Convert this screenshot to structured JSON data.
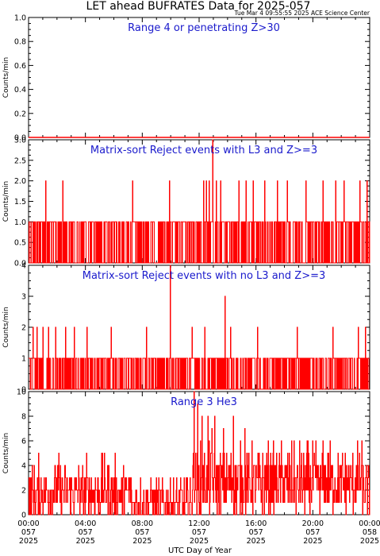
{
  "title": "LET ahead BUFRATES Data for 2025-057",
  "timestamp": "Tue Mar  4 09:55:55 2025 ACE Science Center",
  "colors": {
    "series": "#ff0000",
    "panel_title": "#1a1acc",
    "axis": "#000000"
  },
  "xlabel": "UTC Day of Year",
  "x_ticks": [
    [
      "00:00",
      "057",
      "2025"
    ],
    [
      "04:00",
      "057",
      "2025"
    ],
    [
      "08:00",
      "057",
      "2025"
    ],
    [
      "12:00",
      "057",
      "2025"
    ],
    [
      "16:00",
      "057",
      "2025"
    ],
    [
      "20:00",
      "057",
      "2025"
    ],
    [
      "00:00",
      "058",
      "2025"
    ]
  ],
  "chart_data": [
    {
      "type": "line",
      "title": "Range 4 or   penetrating Z>30",
      "ylabel": "Counts/min",
      "xlabel": "UTC Day of Year",
      "xlim": [
        0,
        24
      ],
      "ylim": [
        0,
        1.0
      ],
      "yticks": [
        "0.0",
        "0.2",
        "0.4",
        "0.6",
        "0.8",
        "1.0"
      ],
      "yticks_v": [
        0,
        0.2,
        0.4,
        0.6,
        0.8,
        1.0
      ],
      "pattern": "flat",
      "levels": [
        0
      ],
      "base": 0,
      "spikes": []
    },
    {
      "type": "line",
      "title": "Matrix-sort Reject events with L3 and Z>=3",
      "ylabel": "Counts/min",
      "xlabel": "UTC Day of Year",
      "xlim": [
        0,
        24
      ],
      "ylim": [
        0,
        3.0
      ],
      "yticks": [
        "0.0",
        "0.5",
        "1.0",
        "1.5",
        "2.0",
        "2.5",
        "3.0"
      ],
      "yticks_v": [
        0,
        0.5,
        1.0,
        1.5,
        2.0,
        2.5,
        3.0
      ],
      "pattern": "binary",
      "levels": [
        0,
        1
      ],
      "base": 1,
      "spikes": [
        {
          "t": 1.2,
          "v": 2
        },
        {
          "t": 2.4,
          "v": 2
        },
        {
          "t": 7.3,
          "v": 2
        },
        {
          "t": 9.9,
          "v": 2
        },
        {
          "t": 12.3,
          "v": 2
        },
        {
          "t": 12.5,
          "v": 2
        },
        {
          "t": 12.7,
          "v": 2
        },
        {
          "t": 12.95,
          "v": 3
        },
        {
          "t": 13.2,
          "v": 2
        },
        {
          "t": 13.5,
          "v": 2
        },
        {
          "t": 14.8,
          "v": 2
        },
        {
          "t": 15.3,
          "v": 2
        },
        {
          "t": 15.8,
          "v": 2
        },
        {
          "t": 16.6,
          "v": 2
        },
        {
          "t": 17.5,
          "v": 2
        },
        {
          "t": 18.2,
          "v": 2
        },
        {
          "t": 19.5,
          "v": 2
        },
        {
          "t": 20.7,
          "v": 2
        },
        {
          "t": 21.6,
          "v": 2
        },
        {
          "t": 22.2,
          "v": 2
        },
        {
          "t": 23.3,
          "v": 2
        },
        {
          "t": 23.8,
          "v": 2
        }
      ]
    },
    {
      "type": "line",
      "title": "Matrix-sort Reject events with no L3 and Z>=3",
      "ylabel": "Counts/min",
      "xlabel": "UTC Day of Year",
      "xlim": [
        0,
        24
      ],
      "ylim": [
        0,
        4
      ],
      "yticks": [
        "0",
        "1",
        "2",
        "3",
        "4"
      ],
      "yticks_v": [
        0,
        1,
        2,
        3,
        4
      ],
      "pattern": "binary",
      "levels": [
        0,
        1
      ],
      "base": 1,
      "spikes": [
        {
          "t": 0.3,
          "v": 2
        },
        {
          "t": 0.6,
          "v": 2
        },
        {
          "t": 1.0,
          "v": 2
        },
        {
          "t": 1.4,
          "v": 2
        },
        {
          "t": 1.9,
          "v": 2
        },
        {
          "t": 2.6,
          "v": 2
        },
        {
          "t": 3.2,
          "v": 2
        },
        {
          "t": 4.1,
          "v": 2
        },
        {
          "t": 5.8,
          "v": 2
        },
        {
          "t": 8.3,
          "v": 2
        },
        {
          "t": 9.95,
          "v": 4
        },
        {
          "t": 11.5,
          "v": 2
        },
        {
          "t": 12.4,
          "v": 2
        },
        {
          "t": 13.8,
          "v": 3
        },
        {
          "t": 14.2,
          "v": 2
        },
        {
          "t": 16.1,
          "v": 2
        },
        {
          "t": 18.9,
          "v": 2
        },
        {
          "t": 21.4,
          "v": 2
        },
        {
          "t": 23.2,
          "v": 2
        },
        {
          "t": 23.7,
          "v": 2
        }
      ]
    },
    {
      "type": "line",
      "title": "Range 3 He3",
      "ylabel": "Counts/min",
      "xlabel": "UTC Day of Year",
      "xlim": [
        0,
        24
      ],
      "ylim": [
        0,
        10
      ],
      "yticks": [
        "0",
        "2",
        "4",
        "6",
        "8",
        "10"
      ],
      "yticks_v": [
        0,
        2,
        4,
        6,
        8,
        10
      ],
      "pattern": "noisy",
      "levels": [
        0,
        1,
        2,
        3,
        4,
        5
      ],
      "base": 2,
      "spikes": [
        {
          "t": 11.65,
          "v": 10
        },
        {
          "t": 11.9,
          "v": 9
        },
        {
          "t": 12.2,
          "v": 8
        },
        {
          "t": 12.6,
          "v": 8
        },
        {
          "t": 13.1,
          "v": 8
        },
        {
          "t": 14.4,
          "v": 8
        },
        {
          "t": 15.2,
          "v": 7
        },
        {
          "t": 13.7,
          "v": 7
        },
        {
          "t": 12.9,
          "v": 7
        }
      ]
    }
  ]
}
